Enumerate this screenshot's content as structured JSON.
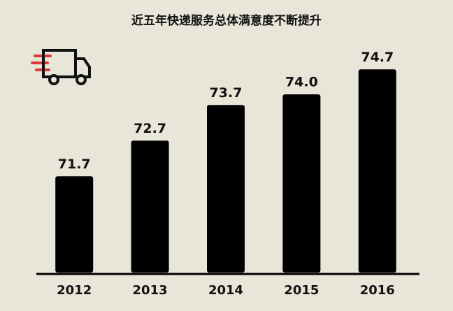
{
  "chart_data": {
    "type": "bar",
    "title": "近五年快递服务总体满意度不断提升",
    "categories": [
      "2012",
      "2013",
      "2014",
      "2015",
      "2016"
    ],
    "values": [
      71.7,
      72.7,
      73.7,
      74.0,
      74.7
    ],
    "value_labels": [
      "71.7",
      "72.7",
      "73.7",
      "74.0",
      "74.7"
    ],
    "color": "#000000",
    "ylim": [
      69,
      75
    ]
  }
}
